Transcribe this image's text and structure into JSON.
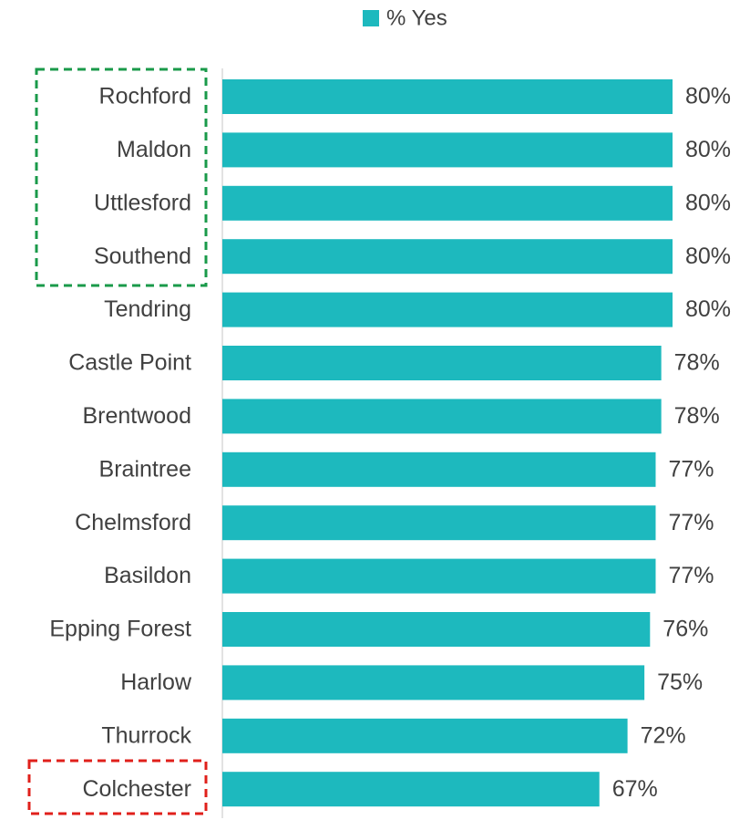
{
  "chart_data": {
    "type": "bar",
    "orientation": "horizontal",
    "categories": [
      "Rochford",
      "Maldon",
      "Uttlesford",
      "Southend",
      "Tendring",
      "Castle Point",
      "Brentwood",
      "Braintree",
      "Chelmsford",
      "Basildon",
      "Epping Forest",
      "Harlow",
      "Thurrock",
      "Colchester"
    ],
    "series": [
      {
        "name": "% Yes",
        "color": "#1db9be",
        "values": [
          80,
          80,
          80,
          80,
          80,
          78,
          78,
          77,
          77,
          77,
          76,
          75,
          72,
          67
        ],
        "value_labels": [
          "80%",
          "80%",
          "80%",
          "80%",
          "80%",
          "78%",
          "78%",
          "77%",
          "77%",
          "77%",
          "76%",
          "75%",
          "72%",
          "67%"
        ]
      }
    ],
    "xlim": [
      0,
      100
    ],
    "legend": "top"
  }
}
